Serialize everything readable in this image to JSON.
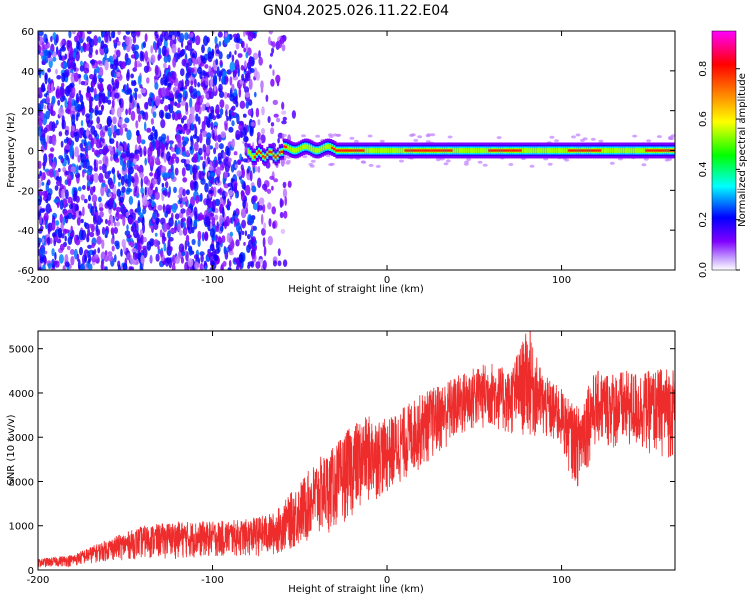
{
  "title": "GN04.2025.026.11.22.E04",
  "chart_data": [
    {
      "type": "heatmap",
      "title": "GN04.2025.026.11.22.E04",
      "xlabel": "Height of straight line (km)",
      "ylabel": "Frequency (Hz)",
      "xlim": [
        -200,
        165
      ],
      "ylim": [
        -60,
        60
      ],
      "x_ticks": [
        -200,
        -100,
        0,
        100
      ],
      "y_ticks": [
        -60,
        -40,
        -20,
        0,
        20,
        40,
        60
      ],
      "x_tick_labels": [
        "-200",
        "-100",
        "0",
        "100"
      ],
      "y_tick_labels": [
        "-60",
        "-40",
        "-20",
        "0",
        "20",
        "40",
        "60"
      ],
      "colorbar": {
        "label": "Normalized spectral amplitude",
        "range": [
          0.0,
          0.95
        ],
        "ticks": [
          0.0,
          0.2,
          0.4,
          0.6,
          0.8
        ],
        "tick_labels": [
          "0.0",
          "0.2",
          "0.4",
          "0.6",
          "0.8"
        ],
        "colormap": "rainbow",
        "colors": [
          "#ffffff",
          "#8000ff",
          "#0000ff",
          "#00ffff",
          "#00ff00",
          "#ffff00",
          "#ff8000",
          "#ff0000",
          "#ff00ff"
        ]
      },
      "regions": [
        {
          "name": "broadband noise",
          "x_range": [
            -200,
            -60
          ],
          "freq_range": [
            -60,
            60
          ],
          "amplitude": [
            0.05,
            0.3
          ]
        },
        {
          "name": "signal line",
          "x_range": [
            -80,
            165
          ],
          "freq_center": 0,
          "freq_halfwidth": 3,
          "amplitude": [
            0.3,
            0.95
          ]
        }
      ]
    },
    {
      "type": "line",
      "xlabel": "Height of straight line (km)",
      "ylabel": "SNR (10 * v/v)",
      "xlim": [
        -200,
        165
      ],
      "ylim": [
        0,
        5400
      ],
      "x_ticks": [
        -200,
        -100,
        0,
        100
      ],
      "y_ticks": [
        0,
        1000,
        2000,
        3000,
        4000,
        5000
      ],
      "x_tick_labels": [
        "-200",
        "-100",
        "0",
        "100"
      ],
      "y_tick_labels": [
        "0",
        "1000",
        "2000",
        "3000",
        "4000",
        "5000"
      ],
      "color": "#ee2c2c",
      "series_envelope": {
        "x": [
          -200,
          -180,
          -160,
          -140,
          -120,
          -100,
          -80,
          -65,
          -60,
          -50,
          -40,
          -30,
          -20,
          -10,
          0,
          10,
          20,
          30,
          40,
          50,
          60,
          70,
          80,
          90,
          100,
          105,
          110,
          115,
          120,
          130,
          140,
          150,
          160,
          165
        ],
        "low": [
          50,
          80,
          200,
          250,
          250,
          280,
          300,
          300,
          400,
          500,
          700,
          900,
          1200,
          1500,
          1700,
          2000,
          2300,
          2600,
          2900,
          3100,
          3200,
          3000,
          3000,
          2900,
          2700,
          2100,
          1800,
          2300,
          2800,
          2700,
          2700,
          2600,
          2500,
          2500
        ],
        "high": [
          250,
          350,
          700,
          1000,
          1100,
          1100,
          1150,
          1300,
          1500,
          2000,
          2500,
          2800,
          3300,
          3500,
          3400,
          3700,
          4000,
          4200,
          4400,
          4600,
          4700,
          4500,
          5400,
          4400,
          4100,
          3800,
          3700,
          4300,
          4500,
          4500,
          4500,
          4500,
          4600,
          4600
        ]
      }
    }
  ]
}
